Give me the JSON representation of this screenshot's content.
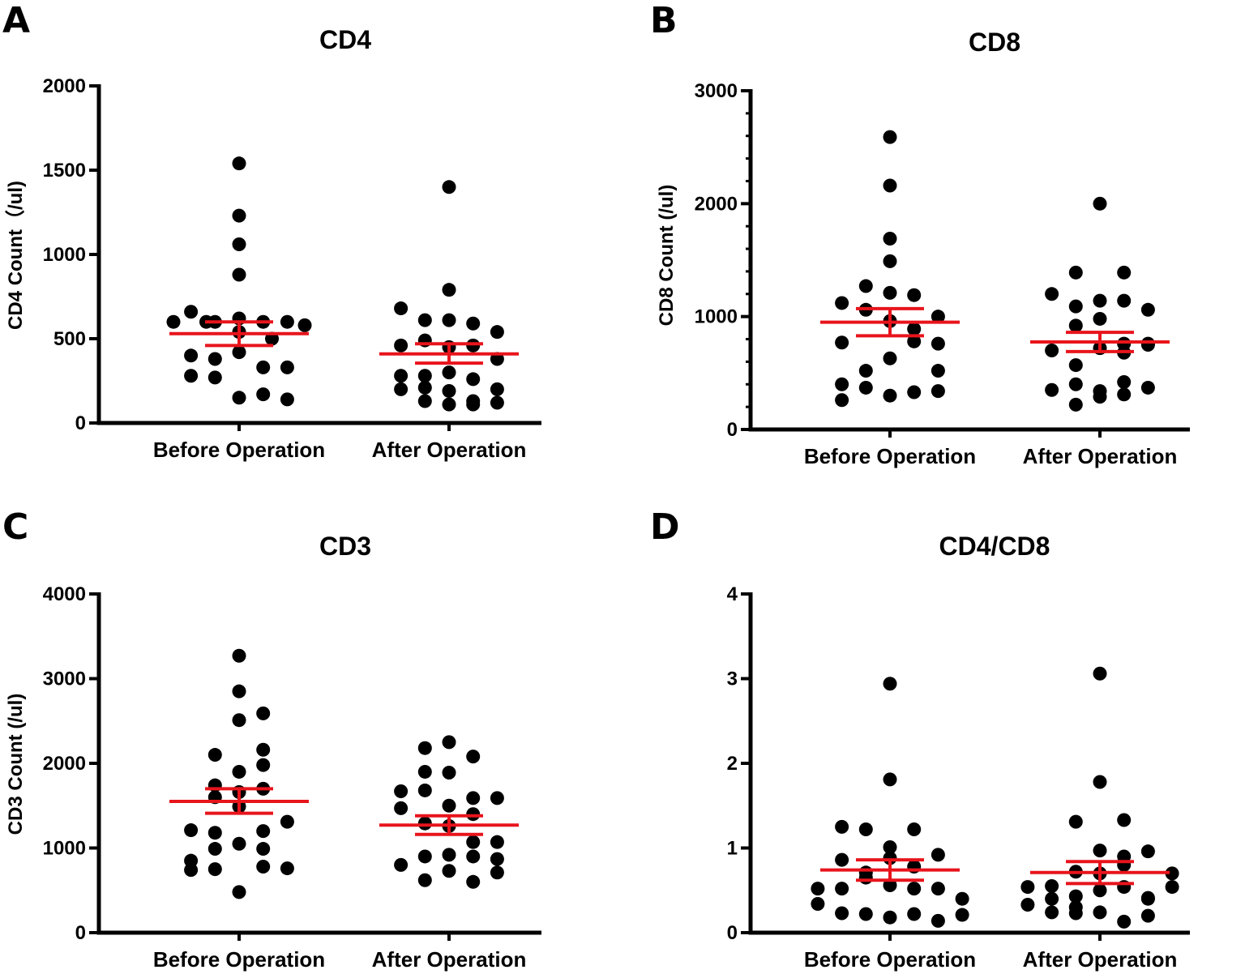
{
  "figure_colors": {
    "point": "#000000",
    "summary": "#e8141c",
    "axis": "#000000"
  },
  "chart_data": [
    {
      "type": "scatter",
      "panel": "A",
      "title": "CD4",
      "ylabel": "CD4 Count（/ul)",
      "xlabel": "",
      "categories": [
        "Before Operation",
        "After Operation"
      ],
      "ylim": [
        0,
        2000
      ],
      "yticks": [
        0,
        500,
        1000,
        1500,
        2000
      ],
      "yticklabels": [
        "0",
        "500",
        "1000",
        "1500",
        "2000"
      ],
      "minor_ticks": 0,
      "series": [
        {
          "name": "Before Operation",
          "mean": 530,
          "sem_low": 460,
          "sem_high": 600,
          "offsets": [
            0,
            0,
            0,
            0,
            -2.2,
            -1.1,
            0,
            1.1,
            2.2,
            -3.0,
            -1.5,
            0,
            1.5,
            3.0,
            -2.2,
            -1.1,
            0,
            1.1,
            2.2,
            -2.2,
            -1.1,
            0,
            1.1,
            2.2
          ],
          "values": [
            1540,
            1230,
            1060,
            880,
            660,
            600,
            620,
            600,
            600,
            600,
            600,
            540,
            500,
            580,
            400,
            380,
            420,
            330,
            330,
            280,
            270,
            150,
            170,
            140
          ]
        },
        {
          "name": "After Operation",
          "mean": 410,
          "sem_low": 355,
          "sem_high": 470,
          "offsets": [
            0,
            0,
            -2.2,
            -1.1,
            0,
            1.1,
            2.2,
            -2.2,
            -1.1,
            0,
            1.1,
            2.2,
            -2.2,
            -1.1,
            0,
            1.1,
            2.2,
            -2.2,
            -1.1,
            0,
            1.1,
            2.2,
            -1.1,
            0,
            1.1
          ],
          "values": [
            1400,
            790,
            680,
            610,
            610,
            590,
            540,
            460,
            490,
            450,
            460,
            380,
            280,
            280,
            300,
            260,
            200,
            200,
            210,
            190,
            110,
            120,
            130,
            110,
            130
          ]
        }
      ]
    },
    {
      "type": "scatter",
      "panel": "B",
      "title": "CD8",
      "ylabel": "CD8 Count (/ul)",
      "xlabel": "",
      "categories": [
        "Before Operation",
        "After Operation"
      ],
      "ylim": [
        0,
        3000
      ],
      "yticks": [
        0,
        1000,
        2000,
        3000
      ],
      "yticklabels": [
        "0",
        "1000",
        "2000",
        "3000"
      ],
      "minor_ticks": 4,
      "series": [
        {
          "name": "Before Operation",
          "mean": 950,
          "sem_low": 830,
          "sem_high": 1070,
          "offsets": [
            0,
            0,
            0,
            0,
            -2.2,
            -1.1,
            0,
            1.1,
            2.2,
            -2.2,
            -1.1,
            0,
            1.1,
            2.2,
            -2.2,
            -1.1,
            0,
            1.1,
            2.2,
            -2.2,
            -1.1,
            0,
            1.1,
            2.2
          ],
          "values": [
            2590,
            2160,
            1690,
            1490,
            1120,
            1270,
            1210,
            1190,
            1000,
            770,
            1060,
            960,
            890,
            760,
            400,
            520,
            630,
            780,
            520,
            260,
            370,
            300,
            330,
            340
          ]
        },
        {
          "name": "After Operation",
          "mean": 775,
          "sem_low": 690,
          "sem_high": 860,
          "offsets": [
            0,
            -1.1,
            1.1,
            -2.2,
            -1.1,
            0,
            1.1,
            2.2,
            -1.1,
            0,
            1.1,
            2.2,
            -2.2,
            -1.1,
            0,
            1.1,
            2.2,
            -2.2,
            -1.1,
            0,
            1.1,
            2.2,
            -1.1,
            0,
            1.1
          ],
          "values": [
            2000,
            1390,
            1390,
            1200,
            1090,
            1140,
            1140,
            1060,
            920,
            980,
            760,
            750,
            700,
            570,
            720,
            680,
            760,
            350,
            400,
            340,
            420,
            370,
            220,
            290,
            310
          ]
        }
      ]
    },
    {
      "type": "scatter",
      "panel": "C",
      "title": "CD3",
      "ylabel": "CD3 Count (/ul)",
      "xlabel": "",
      "categories": [
        "Before Operation",
        "After Operation"
      ],
      "ylim": [
        0,
        4000
      ],
      "yticks": [
        0,
        1000,
        2000,
        3000,
        4000
      ],
      "yticklabels": [
        "0",
        "1000",
        "2000",
        "3000",
        "4000"
      ],
      "minor_ticks": 0,
      "series": [
        {
          "name": "Before Operation",
          "mean": 1550,
          "sem_low": 1410,
          "sem_high": 1700,
          "offsets": [
            0,
            0,
            0,
            1.1,
            -1.1,
            1.1,
            -1.1,
            0,
            1.1,
            -1.1,
            0,
            1.1,
            -2.2,
            -1.1,
            0,
            1.1,
            2.2,
            -2.2,
            -1.1,
            0,
            1.1,
            -2.2,
            -1.1,
            0,
            1.1,
            2.2
          ],
          "values": [
            3270,
            2850,
            2510,
            2590,
            2100,
            2160,
            1740,
            1900,
            1980,
            1600,
            1660,
            1700,
            1210,
            1180,
            1490,
            1200,
            1310,
            850,
            990,
            1050,
            990,
            740,
            750,
            480,
            780,
            760
          ]
        },
        {
          "name": "After Operation",
          "mean": 1270,
          "sem_low": 1160,
          "sem_high": 1380,
          "offsets": [
            -1.1,
            0,
            1.1,
            -1.1,
            0,
            1.1,
            -2.2,
            -1.1,
            0,
            1.1,
            2.2,
            -2.2,
            -1.1,
            0,
            1.1,
            2.2,
            -2.2,
            -1.1,
            0,
            1.1,
            2.2,
            -1.1,
            0,
            1.1,
            2.2
          ],
          "values": [
            2180,
            2250,
            2080,
            1900,
            1890,
            1590,
            1670,
            1680,
            1500,
            1400,
            1590,
            1470,
            1290,
            1260,
            1070,
            1070,
            800,
            900,
            920,
            900,
            870,
            620,
            730,
            600,
            710
          ]
        }
      ]
    },
    {
      "type": "scatter",
      "panel": "D",
      "title": "CD4/CD8",
      "ylabel": "",
      "xlabel": "",
      "categories": [
        "Before Operation",
        "After Operation"
      ],
      "ylim": [
        0,
        4
      ],
      "yticks": [
        0,
        1,
        2,
        3,
        4
      ],
      "yticklabels": [
        "0",
        "1",
        "2",
        "3",
        "4"
      ],
      "minor_ticks": 0,
      "series": [
        {
          "name": "Before Operation",
          "mean": 0.74,
          "sem_low": 0.62,
          "sem_high": 0.86,
          "offsets": [
            0,
            0,
            -2.2,
            -1.1,
            0,
            1.1,
            -2.2,
            -1.1,
            0,
            1.1,
            2.2,
            -3.3,
            -2.2,
            -1.1,
            0,
            1.1,
            2.2,
            3.3,
            -3.3,
            -2.2,
            -1.1,
            0,
            1.1,
            2.2,
            3.3
          ],
          "values": [
            2.94,
            1.81,
            1.25,
            1.22,
            1.01,
            1.22,
            0.86,
            0.71,
            0.88,
            0.78,
            0.92,
            0.52,
            0.52,
            0.65,
            0.56,
            0.52,
            0.52,
            0.4,
            0.34,
            0.23,
            0.22,
            0.18,
            0.22,
            0.14,
            0.21
          ]
        },
        {
          "name": "After Operation",
          "mean": 0.71,
          "sem_low": 0.58,
          "sem_high": 0.84,
          "offsets": [
            0,
            0,
            -1.1,
            1.1,
            0,
            -1.1,
            1.1,
            2.2,
            -2.2,
            -1.1,
            0,
            1.1,
            2.2,
            3.3,
            -3.3,
            -2.2,
            -1.1,
            0,
            1.1,
            2.2,
            3.3,
            -3.3,
            -2.2,
            -1.1,
            0,
            1.1,
            2.2
          ],
          "values": [
            3.06,
            1.78,
            1.31,
            1.33,
            0.97,
            0.72,
            0.9,
            0.96,
            0.55,
            0.43,
            0.7,
            0.8,
            0.4,
            0.7,
            0.54,
            0.4,
            0.3,
            0.5,
            0.54,
            0.41,
            0.54,
            0.33,
            0.24,
            0.23,
            0.24,
            0.13,
            0.2
          ]
        }
      ]
    }
  ]
}
